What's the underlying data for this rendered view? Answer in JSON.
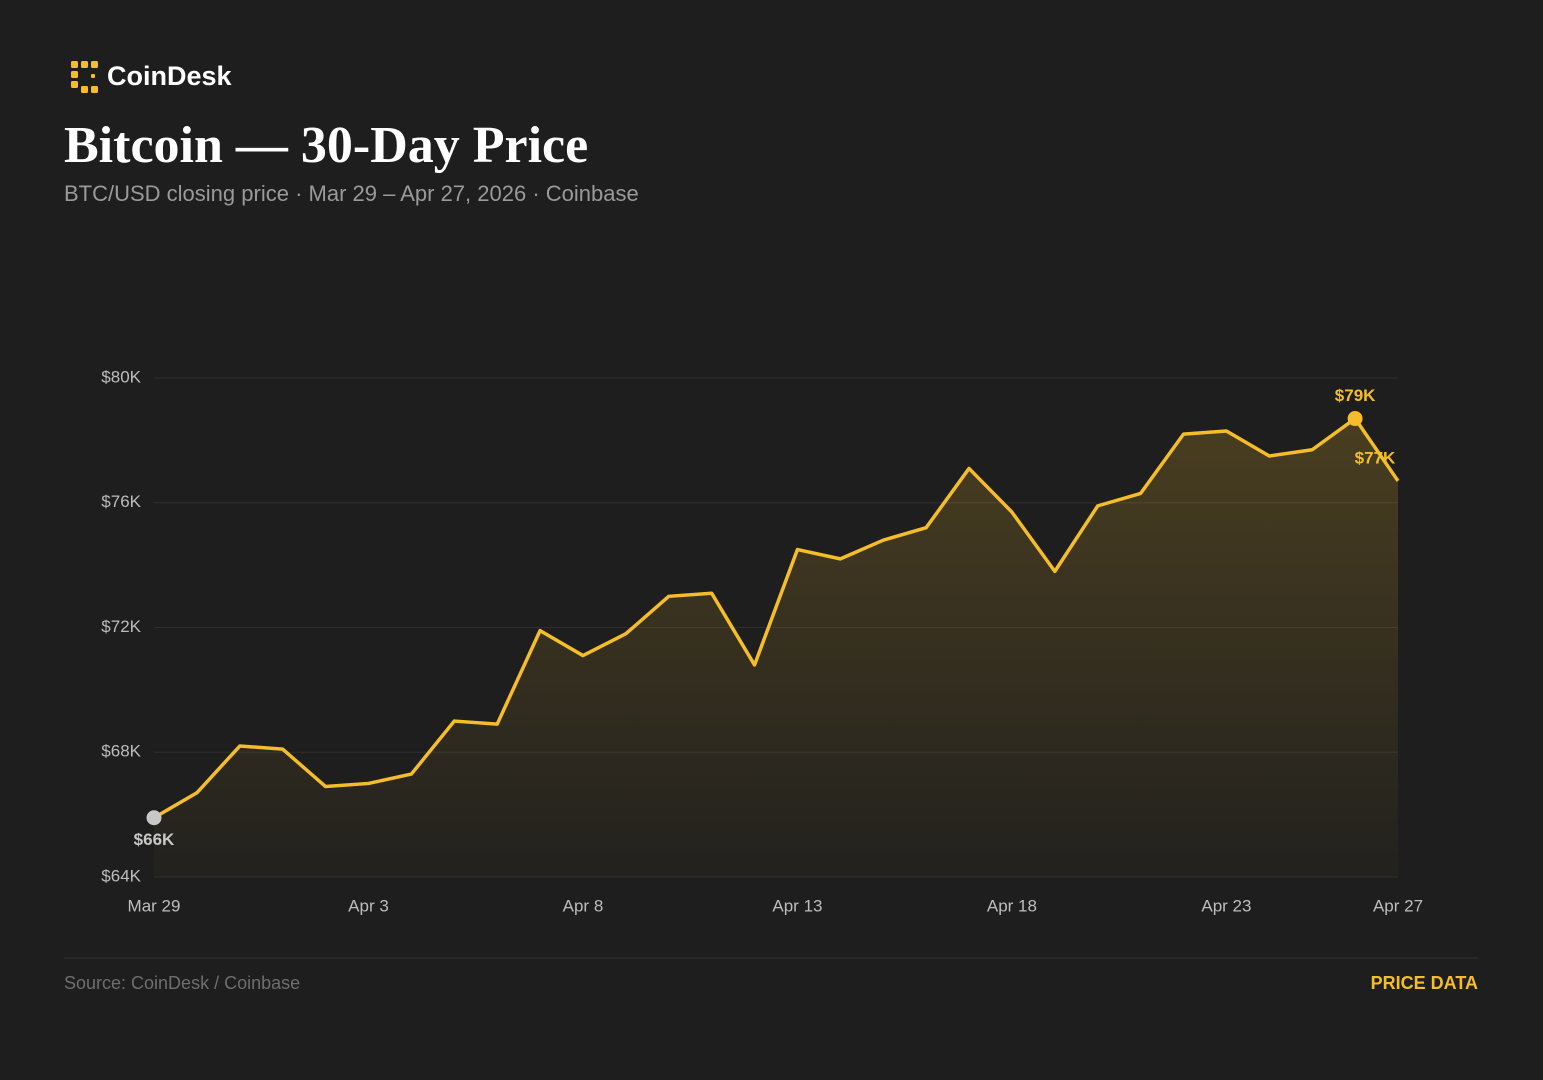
{
  "chart_data": {
    "type": "line",
    "brand": "CoinDesk",
    "title": "Bitcoin — 30-Day Price",
    "subtitle": "BTC/USD closing price · Mar 29 – Apr 27, 2026 · Coinbase",
    "source": "Source: CoinDesk / Coinbase",
    "tag": "PRICE DATA",
    "categories": [
      "Mar 29",
      null,
      null,
      null,
      null,
      "Apr 3",
      null,
      null,
      null,
      null,
      "Apr 8",
      null,
      null,
      null,
      null,
      "Apr 13",
      null,
      null,
      null,
      null,
      "Apr 18",
      null,
      null,
      null,
      null,
      "Apr 23",
      null,
      null,
      null,
      "Apr 27"
    ],
    "values": [
      65900,
      66700,
      68200,
      68100,
      66900,
      67000,
      67300,
      69000,
      68900,
      71900,
      71100,
      71800,
      73000,
      73100,
      70800,
      74500,
      74200,
      74800,
      75200,
      77100,
      75700,
      73800,
      75900,
      76300,
      78200,
      78300,
      77500,
      77700,
      78700,
      76700
    ],
    "value_labels": [
      "$66K",
      null,
      null,
      null,
      null,
      null,
      null,
      null,
      null,
      null,
      null,
      null,
      null,
      null,
      null,
      null,
      null,
      null,
      null,
      null,
      null,
      null,
      null,
      null,
      null,
      null,
      null,
      null,
      "$79K",
      "$77K"
    ],
    "color": "#f5bd2a",
    "start_color": "#c8c8c8",
    "ylim": [
      64000,
      80000
    ],
    "yticks": [
      {
        "value": 64000,
        "label": "$64K"
      },
      {
        "value": 68000,
        "label": "$68K"
      },
      {
        "value": 72000,
        "label": "$72K"
      },
      {
        "value": 76000,
        "label": "$76K"
      },
      {
        "value": 80000,
        "label": "$80K"
      }
    ],
    "grid": true
  }
}
